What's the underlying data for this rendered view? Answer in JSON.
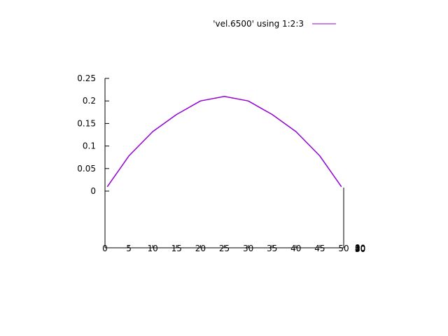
{
  "chart_data": {
    "type": "line",
    "title": "",
    "xlabel": "",
    "ylabel": "",
    "xlim": [
      0,
      50
    ],
    "ylim": [
      0,
      0.25
    ],
    "x_ticks": [
      "0",
      "5",
      "10",
      "15",
      "20",
      "25",
      "30",
      "35",
      "40",
      "45",
      "50"
    ],
    "y_ticks": [
      "0",
      "0.05",
      "0.1",
      "0.15",
      "0.2",
      "0.25"
    ],
    "right_axis_ticks": [
      "0",
      "10",
      "20",
      "30",
      "40",
      "50"
    ],
    "grid": false,
    "legend_position": "top-right",
    "series": [
      {
        "name": "'vel.6500' using 1:2:3",
        "color": "#9400d3",
        "x": [
          0.5,
          5,
          10,
          15,
          20,
          25,
          30,
          35,
          40,
          45,
          49.5
        ],
        "y": [
          0.01,
          0.078,
          0.132,
          0.17,
          0.2,
          0.21,
          0.2,
          0.17,
          0.132,
          0.078,
          0.01
        ]
      }
    ]
  }
}
